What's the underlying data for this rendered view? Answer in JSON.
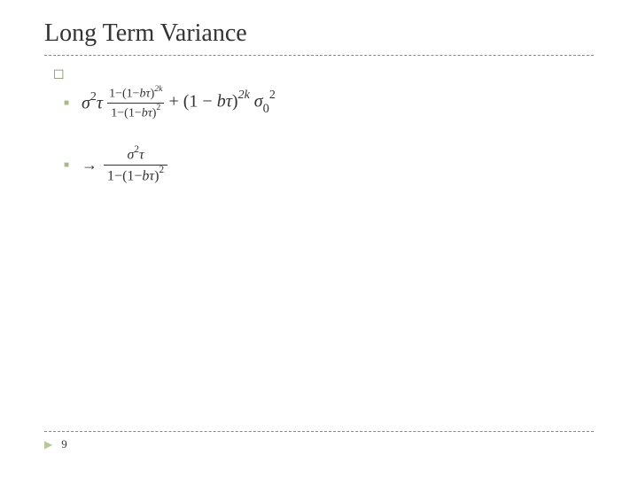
{
  "slide": {
    "title": "Long Term Variance",
    "page_number": "9",
    "background_color": "#ffffff",
    "title_color": "#333333",
    "bullet_color_outline": "#7a8a5a",
    "bullet_color_square": "#a8b888",
    "triangle_color": "#b8c89a",
    "divider_color": "#888888",
    "formula_color": "#333333"
  },
  "formulas": {
    "eq1": {
      "lead_sigma": "σ",
      "lead_exp": "2",
      "lead_tau": "τ",
      "frac_num_a": "1−(1−",
      "frac_num_b": "bτ",
      "frac_num_c": ")",
      "frac_num_exp": "2k",
      "frac_den_a": "1−(1−",
      "frac_den_b": "bτ",
      "frac_den_c": ")",
      "frac_den_exp": "2",
      "plus": " + ",
      "mid_a": "(1 − ",
      "mid_b": "bτ",
      "mid_c": ")",
      "mid_exp": "2k",
      "tail_sigma": " σ",
      "tail_sub": "0",
      "tail_exp": "2"
    },
    "eq2": {
      "arrow": "→",
      "num_sigma": "σ",
      "num_exp": "2",
      "num_tau": "τ",
      "den_a": "1−(1−",
      "den_b": "bτ",
      "den_c": ")",
      "den_exp": "2"
    }
  }
}
